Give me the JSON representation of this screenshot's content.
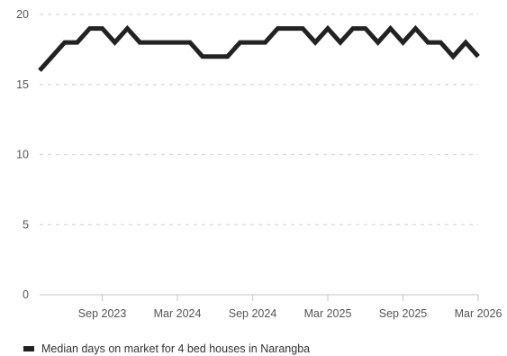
{
  "chart_data": {
    "type": "line",
    "title": "",
    "xlabel": "",
    "ylabel": "",
    "ylim": [
      0,
      20
    ],
    "y_ticks": [
      0,
      5,
      10,
      15,
      20
    ],
    "x_ticks": [
      "Sep 2023",
      "Mar 2024",
      "Sep 2024",
      "Mar 2025",
      "Sep 2025",
      "Mar 2026"
    ],
    "x": [
      "Apr 2023",
      "May 2023",
      "Jun 2023",
      "Jul 2023",
      "Aug 2023",
      "Sep 2023",
      "Oct 2023",
      "Nov 2023",
      "Dec 2023",
      "Jan 2024",
      "Feb 2024",
      "Mar 2024",
      "Apr 2024",
      "May 2024",
      "Jun 2024",
      "Jul 2024",
      "Aug 2024",
      "Sep 2024",
      "Oct 2024",
      "Nov 2024",
      "Dec 2024",
      "Jan 2025",
      "Feb 2025",
      "Mar 2025",
      "Apr 2025",
      "May 2025",
      "Jun 2025",
      "Jul 2025",
      "Aug 2025",
      "Sep 2025",
      "Oct 2025",
      "Nov 2025",
      "Dec 2025",
      "Jan 2026",
      "Feb 2026",
      "Mar 2026"
    ],
    "series": [
      {
        "name": "Median days on market for 4 bed houses in Narangba",
        "color": "#222222",
        "values": [
          16,
          17,
          18,
          18,
          19,
          19,
          18,
          19,
          18,
          18,
          18,
          18,
          18,
          17,
          17,
          17,
          18,
          18,
          18,
          19,
          19,
          19,
          18,
          19,
          18,
          19,
          19,
          18,
          19,
          18,
          19,
          18,
          18,
          17,
          18,
          17
        ]
      }
    ],
    "grid": true,
    "grid_style": "dashed",
    "legend_position": "bottom-left"
  },
  "legend": {
    "label": "Median days on market for 4 bed houses in Narangba"
  }
}
